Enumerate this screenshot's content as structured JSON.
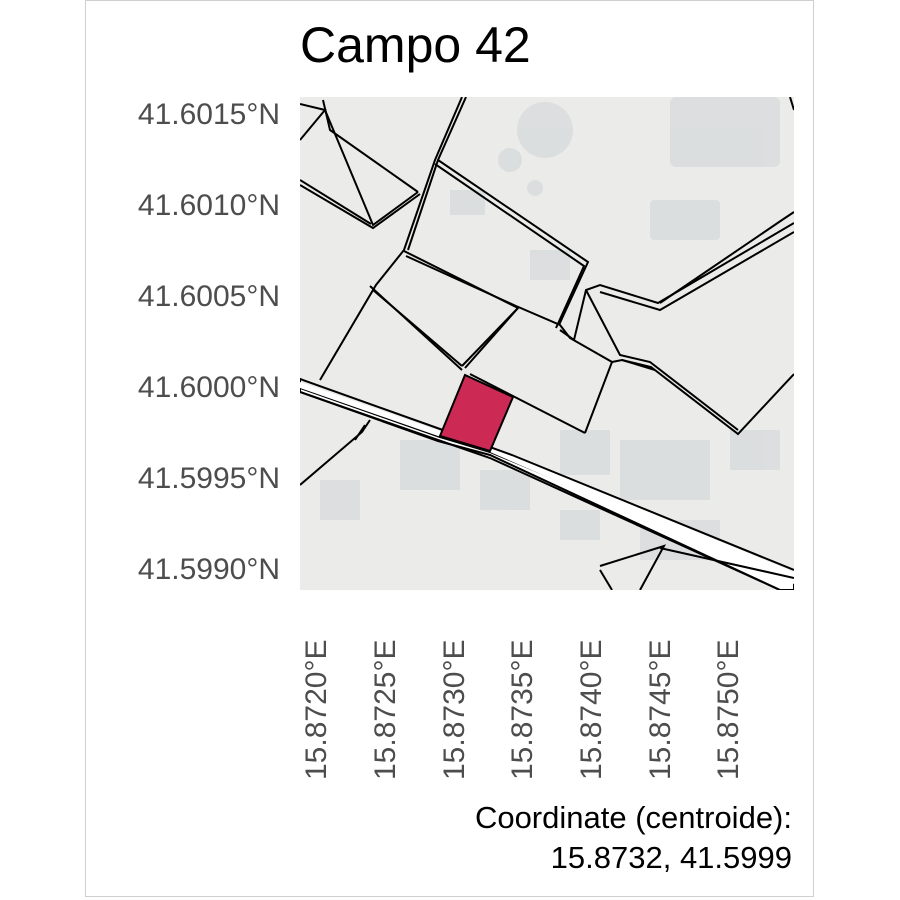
{
  "title": "Campo 42",
  "y_ticks": [
    "41.6015°N",
    "41.6010°N",
    "41.6005°N",
    "41.6000°N",
    "41.5995°N",
    "41.5990°N"
  ],
  "x_ticks": [
    "15.8720°E",
    "15.8725°E",
    "15.8730°E",
    "15.8735°E",
    "15.8740°E",
    "15.8745°E",
    "15.8750°E"
  ],
  "caption": {
    "label": "Coordinate (centroide):",
    "value": "15.8732, 41.5999"
  },
  "colors": {
    "parcel_highlight": "#cc2a55",
    "map_background": "#ebebea",
    "building": "#d9dcdd",
    "boundary": "#000000"
  },
  "map": {
    "highlighted_parcel": "Campo 42",
    "centroid": {
      "lon": 15.8732,
      "lat": 41.5999
    }
  }
}
